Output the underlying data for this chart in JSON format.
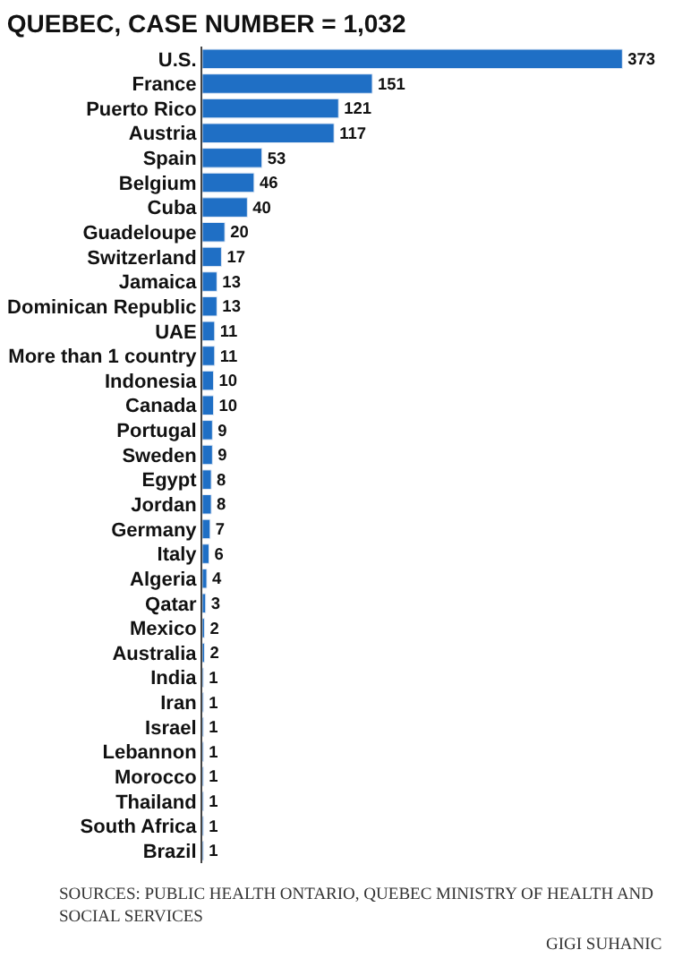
{
  "chart_data": {
    "type": "bar",
    "orientation": "horizontal",
    "title": "QUEBEC, CASE NUMBER = 1,032",
    "categories": [
      "U.S.",
      "France",
      "Puerto Rico",
      "Austria",
      "Spain",
      "Belgium",
      "Cuba",
      "Guadeloupe",
      "Switzerland",
      "Jamaica",
      "Dominican Republic",
      "UAE",
      "More than 1 country",
      "Indonesia",
      "Canada",
      "Portugal",
      "Sweden",
      "Egypt",
      "Jordan",
      "Germany",
      "Italy",
      "Algeria",
      "Qatar",
      "Mexico",
      "Australia",
      "India",
      "Iran",
      "Israel",
      "Lebannon",
      "Morocco",
      "Thailand",
      "South Africa",
      "Brazil"
    ],
    "values": [
      373,
      151,
      121,
      117,
      53,
      46,
      40,
      20,
      17,
      13,
      13,
      11,
      11,
      10,
      10,
      9,
      9,
      8,
      8,
      7,
      6,
      4,
      3,
      2,
      2,
      1,
      1,
      1,
      1,
      1,
      1,
      1,
      1
    ],
    "color": "#1f6fc5",
    "data_labels": true,
    "annotations": [
      "SOURCES: PUBLIC HEALTH ONTARIO, QUEBEC MINISTRY OF HEALTH AND SOCIAL SERVICES",
      "GIGI SUHANIC"
    ]
  }
}
